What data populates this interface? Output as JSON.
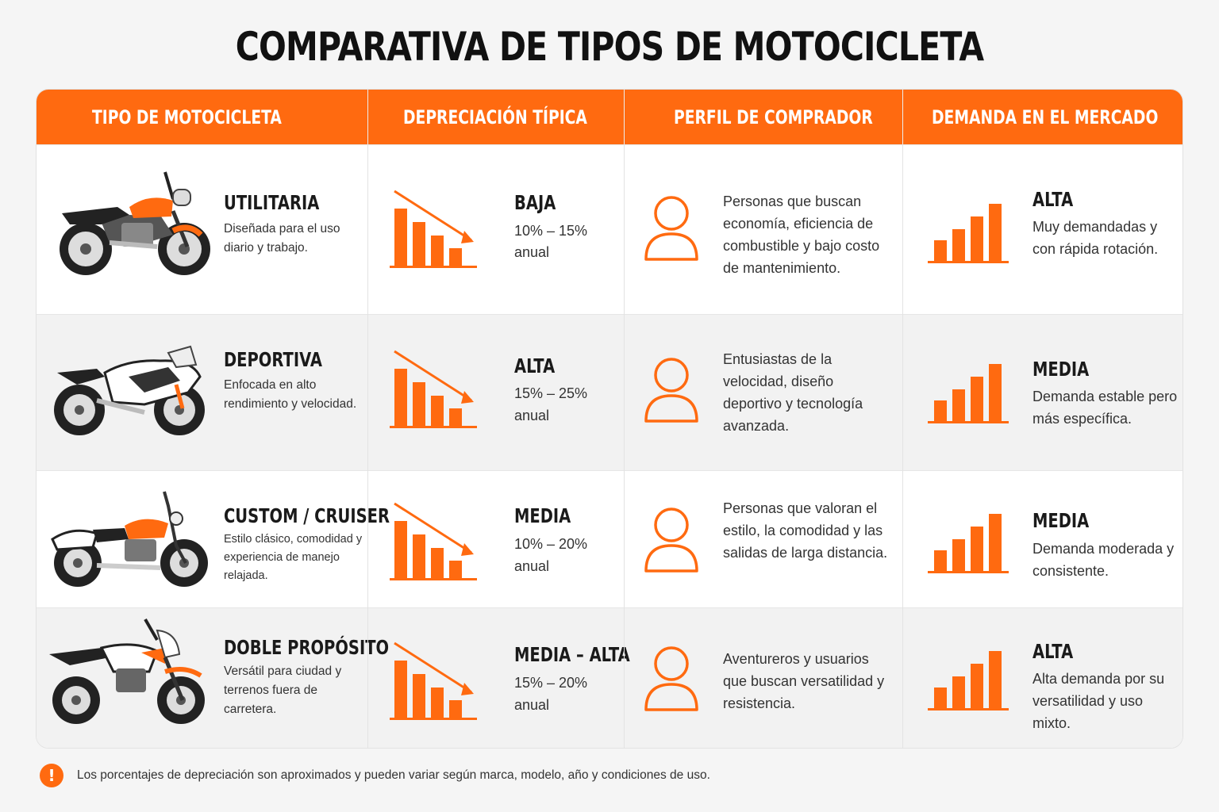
{
  "title": "COMPARATIVA DE TIPOS DE MOTOCICLETA",
  "headers": [
    "TIPO DE MOTOCICLETA",
    "DEPRECIACIÓN TÍPICA",
    "PERFIL DE COMPRADOR",
    "DEMANDA EN EL MERCADO"
  ],
  "colors": {
    "accent": "#ff6a10",
    "alt_row": "#f2f2f2"
  },
  "rows": [
    {
      "type": "UTILITARIA",
      "type_desc": "Diseñada para el uso diario y trabajo.",
      "dep_level": "BAJA",
      "dep_range": "10% – 15%",
      "dep_unit": "anual",
      "buyer": "Personas que buscan economía, eficiencia de combustible y bajo costo de mantenimiento.",
      "demand": "ALTA",
      "demand_desc": "Muy demandadas y con rápida rotación.",
      "icons": {
        "bike": "utility-motorcycle-icon",
        "depreciation": "depreciation-chart-icon",
        "buyer": "person-icon",
        "demand": "demand-bars-icon"
      }
    },
    {
      "type": "DEPORTIVA",
      "type_desc": "Enfocada en alto rendimiento y velocidad.",
      "dep_level": "ALTA",
      "dep_range": "15% – 25%",
      "dep_unit": "anual",
      "buyer": "Entusiastas de la velocidad, diseño deportivo y tecnología avanzada.",
      "demand": "MEDIA",
      "demand_desc": "Demanda estable pero más específica.",
      "icons": {
        "bike": "sport-motorcycle-icon",
        "depreciation": "depreciation-chart-icon",
        "buyer": "person-icon",
        "demand": "demand-bars-icon"
      }
    },
    {
      "type": "CUSTOM / CRUISER",
      "type_desc": "Estilo clásico, comodidad y experiencia de manejo relajada.",
      "dep_level": "MEDIA",
      "dep_range": "10% – 20%",
      "dep_unit": "anual",
      "buyer": "Personas que valoran el estilo, la comodidad y las salidas de larga distancia.",
      "demand": "MEDIA",
      "demand_desc": "Demanda moderada y consistente.",
      "icons": {
        "bike": "cruiser-motorcycle-icon",
        "depreciation": "depreciation-chart-icon",
        "buyer": "person-icon",
        "demand": "demand-bars-icon"
      }
    },
    {
      "type": "DOBLE PROPÓSITO",
      "type_desc": "Versátil para ciudad y terrenos fuera de carretera.",
      "dep_level": "MEDIA – ALTA",
      "dep_range": "15%  –  20%",
      "dep_unit": "anual",
      "buyer": "Aventureros y usuarios que buscan versatilidad y resistencia.",
      "demand": "ALTA",
      "demand_desc": "Alta demanda por su versatilidad y uso mixto.",
      "icons": {
        "bike": "dual-sport-motorcycle-icon",
        "depreciation": "depreciation-chart-icon",
        "buyer": "person-icon",
        "demand": "demand-bars-icon"
      }
    }
  ],
  "footnote": "Los porcentajes de depreciación son aproximados y pueden variar según marca, modelo, año y condiciones de uso."
}
